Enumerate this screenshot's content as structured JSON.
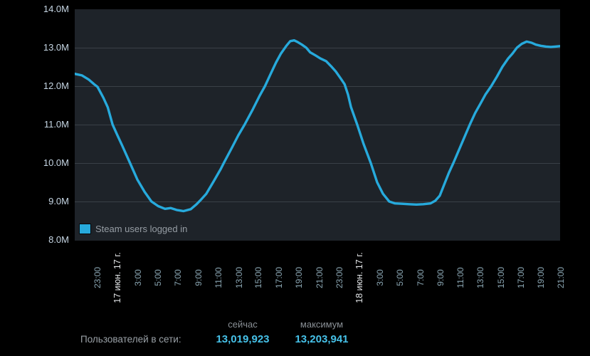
{
  "chart_data": {
    "type": "line",
    "title": "",
    "xlabel": "",
    "ylabel": "",
    "ylim": [
      8.0,
      14.0
    ],
    "y_unit": "M (millions of users)",
    "y_ticks": [
      "14.0M",
      "13.0M",
      "12.0M",
      "11.0M",
      "10.0M",
      "9.0M",
      "8.0M"
    ],
    "y_gridline_values": [
      13,
      12,
      11,
      10,
      9
    ],
    "grid": "horizontal-only",
    "legend_position": "inside-bottom-left",
    "x_ticks": [
      {
        "pos": 0.047,
        "label": "23:00",
        "type": "time"
      },
      {
        "pos": 0.088,
        "label": "17 июн. 17 г.",
        "type": "date"
      },
      {
        "pos": 0.13,
        "label": "3:00",
        "type": "time"
      },
      {
        "pos": 0.172,
        "label": "5:00",
        "type": "time"
      },
      {
        "pos": 0.213,
        "label": "7:00",
        "type": "time"
      },
      {
        "pos": 0.255,
        "label": "9:00",
        "type": "time"
      },
      {
        "pos": 0.296,
        "label": "11:00",
        "type": "time"
      },
      {
        "pos": 0.338,
        "label": "13:00",
        "type": "time"
      },
      {
        "pos": 0.379,
        "label": "15:00",
        "type": "time"
      },
      {
        "pos": 0.421,
        "label": "17:00",
        "type": "time"
      },
      {
        "pos": 0.462,
        "label": "19:00",
        "type": "time"
      },
      {
        "pos": 0.504,
        "label": "21:00",
        "type": "time"
      },
      {
        "pos": 0.545,
        "label": "23:00",
        "type": "time"
      },
      {
        "pos": 0.587,
        "label": "18 июн. 17 г.",
        "type": "date"
      },
      {
        "pos": 0.629,
        "label": "3:00",
        "type": "time"
      },
      {
        "pos": 0.67,
        "label": "5:00",
        "type": "time"
      },
      {
        "pos": 0.712,
        "label": "7:00",
        "type": "time"
      },
      {
        "pos": 0.753,
        "label": "9:00",
        "type": "time"
      },
      {
        "pos": 0.795,
        "label": "11:00",
        "type": "time"
      },
      {
        "pos": 0.836,
        "label": "13:00",
        "type": "time"
      },
      {
        "pos": 0.878,
        "label": "15:00",
        "type": "time"
      },
      {
        "pos": 0.919,
        "label": "17:00",
        "type": "time"
      },
      {
        "pos": 0.961,
        "label": "19:00",
        "type": "time"
      },
      {
        "pos": 1.002,
        "label": "21:00",
        "type": "time"
      }
    ],
    "series": [
      {
        "name": "Steam users logged in",
        "color": "#27aadc",
        "points": [
          [
            0.0,
            12.32
          ],
          [
            0.015,
            12.28
          ],
          [
            0.029,
            12.17
          ],
          [
            0.04,
            12.05
          ],
          [
            0.047,
            11.98
          ],
          [
            0.059,
            11.7
          ],
          [
            0.068,
            11.45
          ],
          [
            0.078,
            11.0
          ],
          [
            0.088,
            10.72
          ],
          [
            0.098,
            10.45
          ],
          [
            0.114,
            10.0
          ],
          [
            0.129,
            9.57
          ],
          [
            0.144,
            9.25
          ],
          [
            0.158,
            9.0
          ],
          [
            0.172,
            8.88
          ],
          [
            0.186,
            8.81
          ],
          [
            0.198,
            8.83
          ],
          [
            0.21,
            8.78
          ],
          [
            0.224,
            8.75
          ],
          [
            0.239,
            8.8
          ],
          [
            0.251,
            8.93
          ],
          [
            0.261,
            9.06
          ],
          [
            0.271,
            9.2
          ],
          [
            0.286,
            9.52
          ],
          [
            0.301,
            9.85
          ],
          [
            0.307,
            10.0
          ],
          [
            0.323,
            10.38
          ],
          [
            0.337,
            10.72
          ],
          [
            0.35,
            11.0
          ],
          [
            0.367,
            11.4
          ],
          [
            0.381,
            11.75
          ],
          [
            0.392,
            12.0
          ],
          [
            0.403,
            12.3
          ],
          [
            0.415,
            12.62
          ],
          [
            0.425,
            12.85
          ],
          [
            0.436,
            13.05
          ],
          [
            0.444,
            13.17
          ],
          [
            0.452,
            13.19
          ],
          [
            0.459,
            13.15
          ],
          [
            0.468,
            13.08
          ],
          [
            0.477,
            13.0
          ],
          [
            0.485,
            12.88
          ],
          [
            0.496,
            12.8
          ],
          [
            0.506,
            12.72
          ],
          [
            0.518,
            12.65
          ],
          [
            0.528,
            12.52
          ],
          [
            0.538,
            12.38
          ],
          [
            0.548,
            12.2
          ],
          [
            0.556,
            12.05
          ],
          [
            0.563,
            11.78
          ],
          [
            0.569,
            11.46
          ],
          [
            0.582,
            11.0
          ],
          [
            0.595,
            10.5
          ],
          [
            0.61,
            10.0
          ],
          [
            0.623,
            9.5
          ],
          [
            0.635,
            9.2
          ],
          [
            0.648,
            9.0
          ],
          [
            0.66,
            8.95
          ],
          [
            0.674,
            8.94
          ],
          [
            0.689,
            8.93
          ],
          [
            0.704,
            8.92
          ],
          [
            0.718,
            8.93
          ],
          [
            0.733,
            8.95
          ],
          [
            0.743,
            9.02
          ],
          [
            0.752,
            9.15
          ],
          [
            0.763,
            9.5
          ],
          [
            0.771,
            9.75
          ],
          [
            0.78,
            10.0
          ],
          [
            0.792,
            10.35
          ],
          [
            0.802,
            10.65
          ],
          [
            0.814,
            11.0
          ],
          [
            0.825,
            11.3
          ],
          [
            0.836,
            11.55
          ],
          [
            0.846,
            11.78
          ],
          [
            0.858,
            12.0
          ],
          [
            0.87,
            12.25
          ],
          [
            0.881,
            12.5
          ],
          [
            0.893,
            12.72
          ],
          [
            0.902,
            12.85
          ],
          [
            0.911,
            13.0
          ],
          [
            0.921,
            13.1
          ],
          [
            0.931,
            13.16
          ],
          [
            0.941,
            13.13
          ],
          [
            0.95,
            13.08
          ],
          [
            0.96,
            13.05
          ],
          [
            0.971,
            13.03
          ],
          [
            0.981,
            13.02
          ],
          [
            0.99,
            13.03
          ],
          [
            1.0,
            13.04
          ]
        ]
      }
    ]
  },
  "legend": {
    "label": "Steam users logged in"
  },
  "stats": {
    "row_label": "Пользователей в сети:",
    "columns": [
      {
        "header": "сейчас",
        "value": "13,019,923"
      },
      {
        "header": "максимум",
        "value": "13,203,941"
      }
    ]
  },
  "colors": {
    "page_bg": "#000000",
    "plot_bg": "#1e2329",
    "grid": "#3a4047",
    "line": "#27aadc",
    "y_label": "#c6d6e4",
    "x_time_label": "#8aa6b3",
    "x_date_label": "#e2e5e7",
    "legend_text": "#969da4",
    "stats_header": "#8a9096",
    "stats_label": "#9aa1a7",
    "stats_value": "#46c1e8"
  }
}
